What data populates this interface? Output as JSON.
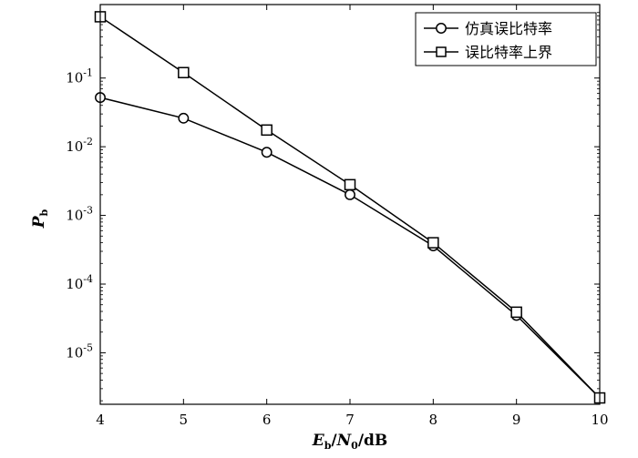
{
  "chart_data": {
    "type": "line",
    "xlabel_parts": {
      "main1": "E",
      "sub1": "b",
      "sep1": "/",
      "main2": "N",
      "sub2": "0",
      "sep2": "/dB"
    },
    "ylabel_parts": {
      "main": "P",
      "sub": "b"
    },
    "x_ticks": [
      4,
      5,
      6,
      7,
      8,
      9,
      10
    ],
    "xlim": [
      4,
      10
    ],
    "ylim_exp": [
      -5.75,
      0.07
    ],
    "y_scale": "log",
    "y_ticks": [
      {
        "exp": -1,
        "base": "10",
        "sup": "-1"
      },
      {
        "exp": -2,
        "base": "10",
        "sup": "-2"
      },
      {
        "exp": -3,
        "base": "10",
        "sup": "-3"
      },
      {
        "exp": -4,
        "base": "10",
        "sup": "-4"
      },
      {
        "exp": -5,
        "base": "10",
        "sup": "-5"
      }
    ],
    "legend_position": "top-right",
    "series": [
      {
        "name": "仿真误比特率",
        "marker": "circle",
        "x": [
          4,
          5,
          6,
          7,
          8,
          9,
          10
        ],
        "y": [
          0.052,
          0.026,
          0.0083,
          0.002,
          0.00036,
          3.5e-05,
          2.2e-06
        ]
      },
      {
        "name": "误比特率上界",
        "marker": "square",
        "x": [
          4,
          5,
          6,
          7,
          8,
          9,
          10
        ],
        "y": [
          0.78,
          0.12,
          0.0175,
          0.0028,
          0.0004,
          3.9e-05,
          2.2e-06
        ]
      }
    ]
  }
}
